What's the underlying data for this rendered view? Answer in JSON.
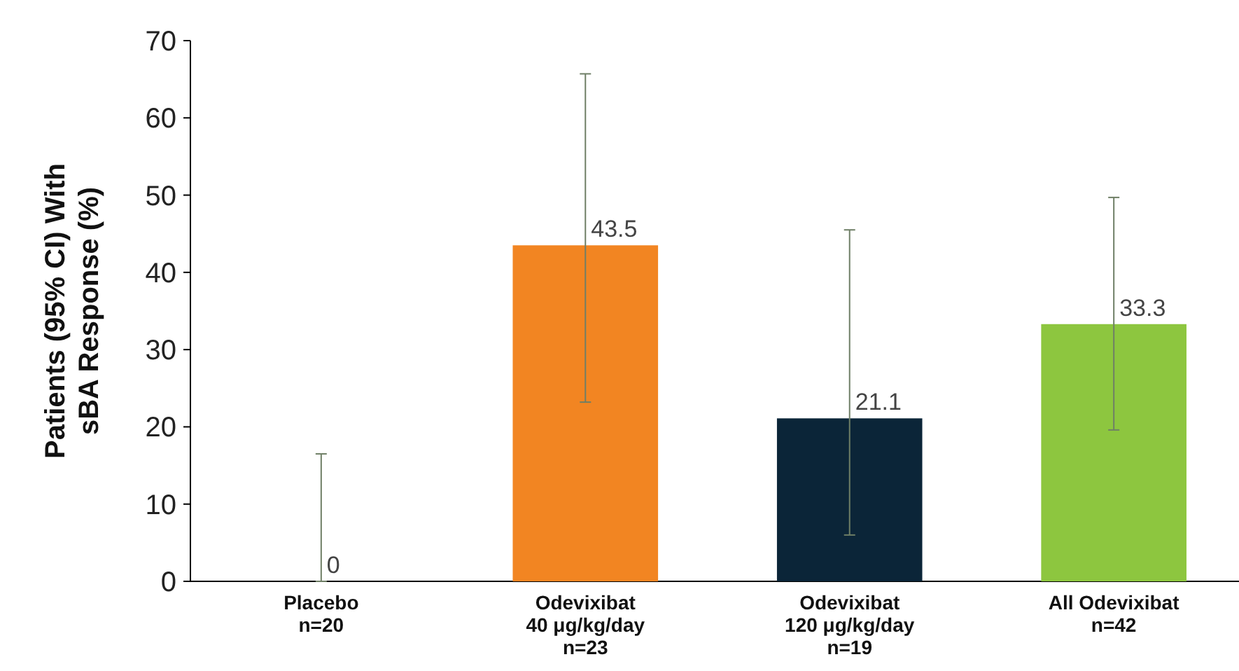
{
  "chart_data": {
    "type": "bar",
    "ylabel": "Patients (95% CI) With\nsBA Response (%)",
    "categories": [
      "Placebo\nn=20",
      "Odevixibat\n40 μg/kg/day\nn=23",
      "Odevixibat\n120 μg/kg/day\nn=19",
      "All Odevixibat\nn=42"
    ],
    "values": [
      0,
      43.5,
      21.1,
      33.3
    ],
    "colors": [
      "#f28522",
      "#f28522",
      "#0b2538",
      "#8dc63f"
    ],
    "errors": [
      [
        0,
        16.5
      ],
      [
        23.2,
        65.7
      ],
      [
        6.0,
        45.5
      ],
      [
        19.6,
        49.7
      ]
    ],
    "ylim": [
      0,
      70
    ],
    "yticks": [
      0,
      10,
      20,
      30,
      40,
      50,
      60,
      70
    ],
    "grid": false,
    "data_labels": true
  }
}
